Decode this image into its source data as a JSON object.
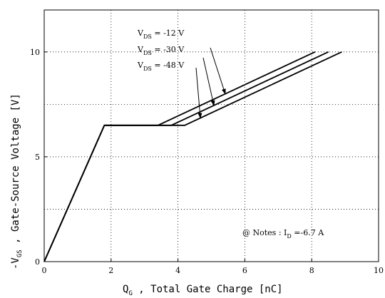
{
  "chart_data": {
    "type": "line",
    "title": "",
    "xlabel": {
      "main": "Q",
      "sub": "G",
      "rest": " , Total Gate Charge  [nC]"
    },
    "ylabel": {
      "main": "-V",
      "sub": "GS",
      "rest": " ,  Gate-Source Voltage  [V]"
    },
    "xlim": [
      0,
      10
    ],
    "ylim": [
      0,
      12
    ],
    "x_ticks": [
      0,
      2,
      4,
      6,
      8,
      10
    ],
    "y_ticks": [
      0,
      5,
      10
    ],
    "grid": "dotted",
    "series": [
      {
        "name": "V_DS = -12 V",
        "x": [
          0,
          1.8,
          3.4,
          8.1
        ],
        "y": [
          0,
          6.5,
          6.5,
          10
        ]
      },
      {
        "name": "V_DS = -30 V",
        "x": [
          0,
          1.8,
          3.8,
          8.5
        ],
        "y": [
          0,
          6.5,
          6.5,
          10
        ]
      },
      {
        "name": "V_DS = -48 V",
        "x": [
          0,
          1.8,
          4.2,
          8.9
        ],
        "y": [
          0,
          6.5,
          6.5,
          10
        ]
      }
    ],
    "legend": [
      {
        "main": "V",
        "sub": "DS",
        "rest": " = -12 V"
      },
      {
        "main": "V",
        "sub": "DS",
        "rest": " = -30 V"
      },
      {
        "main": "V",
        "sub": "DS",
        "rest": " = -48 V"
      }
    ],
    "note": {
      "pre": "@ Notes : I",
      "sub": "D",
      "post": " =-6.7 A"
    }
  }
}
